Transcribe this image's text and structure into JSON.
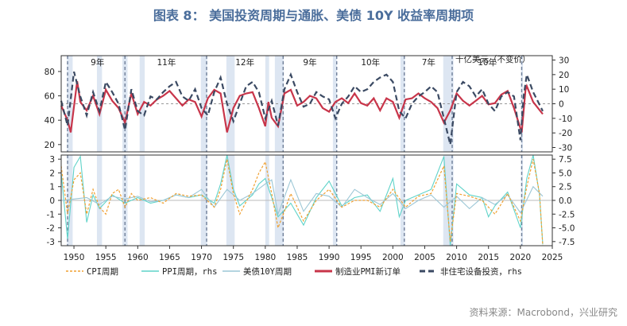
{
  "title": "图表 8： 美国投资周期与通胀、美债 10Y 收益率周期项",
  "source": "资料来源：Macrobond，兴业研究",
  "colors": {
    "cpi": "#f0a030",
    "ppi": "#5fd3c9",
    "bond": "#9cc7d6",
    "pmi": "#c8354a",
    "capex": "#3b4a63",
    "band": "#dde6f2",
    "vline": "#6f7f99"
  },
  "chart_data": [
    {
      "type": "line",
      "panel": "top",
      "xlim": [
        1948,
        2025
      ],
      "ylim": [
        14,
        93
      ],
      "y2lim": [
        -33,
        33
      ],
      "yticks": [
        20,
        40,
        60,
        80
      ],
      "y2ticks": [
        30,
        20,
        10,
        0,
        -10,
        -20,
        -30
      ],
      "cycle_lines": [
        1949,
        1958,
        1970.8,
        1982.8,
        1991.2,
        2001.8,
        2009.3,
        2020.2
      ],
      "cycle_labels": [
        {
          "x": 1953.7,
          "text": "9年"
        },
        {
          "x": 1964.5,
          "text": "11年"
        },
        {
          "x": 1976.8,
          "text": "12年"
        },
        {
          "x": 1987.0,
          "text": "9年"
        },
        {
          "x": 1996.5,
          "text": "10年"
        },
        {
          "x": 2005.6,
          "text": "7年"
        },
        {
          "x": 2014.8,
          "text": "10年"
        }
      ],
      "annotation": "十亿美元（不变价）",
      "recession_bands": [
        [
          1948.9,
          1949.8
        ],
        [
          1953.6,
          1954.4
        ],
        [
          1957.6,
          1958.4
        ],
        [
          1960.3,
          1961.1
        ],
        [
          1969.9,
          1970.9
        ],
        [
          1973.9,
          1975.2
        ],
        [
          1980.0,
          1980.6
        ],
        [
          1981.5,
          1982.9
        ],
        [
          1990.6,
          1991.2
        ],
        [
          2001.2,
          2001.9
        ],
        [
          2007.9,
          2009.5
        ],
        [
          2020.1,
          2020.4
        ]
      ],
      "series": [
        {
          "name": "制造业PMI新订单",
          "axis": "left",
          "x": [
            1948,
            1949,
            1949.5,
            1950.5,
            1951,
            1952,
            1953,
            1954,
            1955,
            1956,
            1957,
            1958,
            1959,
            1960,
            1961,
            1962,
            1963,
            1964,
            1965,
            1966,
            1967,
            1968,
            1969,
            1970,
            1971,
            1972,
            1973,
            1974,
            1975,
            1976,
            1977,
            1978,
            1979,
            1980,
            1980.5,
            1981,
            1982,
            1983,
            1984,
            1985,
            1986,
            1987,
            1988,
            1989,
            1990,
            1991,
            1992,
            1993,
            1994,
            1995,
            1996,
            1997,
            1998,
            1999,
            2000,
            2001,
            2002,
            2003,
            2004,
            2005,
            2006,
            2007,
            2008,
            2009,
            2010,
            2011,
            2012,
            2013,
            2014,
            2015,
            2016,
            2017,
            2018,
            2019,
            2020.2,
            2020.8,
            2021,
            2022,
            2023.5
          ],
          "values": [
            52,
            40,
            30,
            72,
            55,
            48,
            60,
            45,
            65,
            56,
            50,
            38,
            62,
            45,
            55,
            52,
            57,
            60,
            64,
            58,
            52,
            57,
            55,
            43,
            58,
            65,
            62,
            30,
            50,
            60,
            62,
            63,
            50,
            35,
            55,
            42,
            35,
            62,
            65,
            52,
            55,
            60,
            58,
            50,
            47,
            55,
            58,
            54,
            62,
            54,
            52,
            58,
            48,
            58,
            55,
            42,
            57,
            58,
            62,
            58,
            55,
            50,
            38,
            48,
            62,
            56,
            52,
            56,
            60,
            53,
            54,
            61,
            64,
            50,
            30,
            65,
            68,
            55,
            45
          ]
        },
        {
          "name": "非住宅设备投资，rhs",
          "axis": "right",
          "x": [
            1948,
            1949,
            1950,
            1951,
            1952,
            1953,
            1954,
            1955,
            1956,
            1957,
            1958,
            1959,
            1960,
            1961,
            1962,
            1963,
            1964,
            1965,
            1966,
            1967,
            1968,
            1969,
            1970,
            1971,
            1972,
            1973,
            1974,
            1975,
            1976,
            1977,
            1978,
            1979,
            1980,
            1981,
            1982,
            1983,
            1984,
            1985,
            1986,
            1987,
            1988,
            1989,
            1990,
            1991,
            1992,
            1993,
            1994,
            1995,
            1996,
            1997,
            1998,
            1999,
            2000,
            2001,
            2002,
            2003,
            2004,
            2005,
            2006,
            2007,
            2008,
            2009,
            2010,
            2011,
            2012,
            2013,
            2014,
            2015,
            2016,
            2017,
            2018,
            2019,
            2020,
            2020.5,
            2021,
            2022,
            2023.5
          ],
          "values": [
            2,
            -15,
            22,
            5,
            -8,
            8,
            -5,
            15,
            8,
            0,
            -18,
            10,
            -5,
            -8,
            5,
            3,
            8,
            12,
            15,
            5,
            2,
            10,
            -3,
            -8,
            8,
            18,
            0,
            -12,
            0,
            12,
            15,
            8,
            -10,
            2,
            -15,
            10,
            20,
            8,
            -2,
            0,
            8,
            5,
            3,
            -10,
            0,
            5,
            12,
            8,
            10,
            15,
            18,
            20,
            15,
            -5,
            -10,
            0,
            5,
            8,
            12,
            8,
            -10,
            -28,
            8,
            15,
            12,
            5,
            10,
            0,
            -5,
            5,
            8,
            5,
            -25,
            5,
            20,
            8,
            -5
          ]
        }
      ]
    },
    {
      "type": "line",
      "panel": "bottom",
      "xlim": [
        1948,
        2025
      ],
      "ylim": [
        -3.3,
        3.3
      ],
      "y2lim": [
        -8.25,
        8.25
      ],
      "yticks": [
        3,
        2,
        1,
        0,
        -1,
        -2,
        -3
      ],
      "y2ticks": [
        "7.5",
        "5.0",
        "2.5",
        "0.0",
        "-2.5",
        "-5.0",
        "-7.5"
      ],
      "xticks": [
        1950,
        1955,
        1960,
        1965,
        1970,
        1975,
        1980,
        1985,
        1990,
        1995,
        2000,
        2005,
        2010,
        2015,
        2020,
        2025
      ],
      "series": [
        {
          "name": "CPI周期",
          "axis": "left",
          "x": [
            1948,
            1949,
            1950,
            1951,
            1952,
            1953,
            1954,
            1955,
            1956,
            1957,
            1958,
            1959,
            1960,
            1962,
            1964,
            1966,
            1968,
            1970,
            1972,
            1973,
            1974,
            1975,
            1976,
            1978,
            1979,
            1980,
            1981,
            1982,
            1983,
            1984,
            1986,
            1988,
            1990,
            1992,
            1994,
            1996,
            1998,
            2000,
            2002,
            2004,
            2006,
            2008,
            2009,
            2010,
            2012,
            2014,
            2016,
            2018,
            2020,
            2021,
            2022,
            2023,
            2023.5
          ],
          "values": [
            2.5,
            -1.0,
            1.5,
            2.0,
            -1.0,
            0.8,
            -0.5,
            -1.0,
            0.5,
            0.8,
            -0.5,
            0.5,
            0.0,
            0.2,
            -0.2,
            0.5,
            0.3,
            0.4,
            -0.5,
            0.8,
            3.0,
            0.5,
            -1.0,
            0.8,
            2.0,
            2.8,
            0.5,
            -2.0,
            -0.8,
            0.5,
            -1.5,
            0.0,
            0.8,
            -0.5,
            0.0,
            0.0,
            -0.5,
            0.8,
            -0.5,
            0.3,
            0.5,
            2.5,
            -3.0,
            0.5,
            0.3,
            0.0,
            -1.0,
            0.5,
            -1.5,
            1.0,
            3.0,
            0.5,
            -3.5
          ]
        },
        {
          "name": "PPI周期，rhs",
          "axis": "right",
          "x": [
            1948,
            1949,
            1950,
            1951,
            1952,
            1953,
            1954,
            1956,
            1958,
            1960,
            1962,
            1964,
            1966,
            1968,
            1970,
            1972,
            1973,
            1974,
            1975,
            1976,
            1978,
            1979,
            1980,
            1981,
            1982,
            1984,
            1986,
            1988,
            1990,
            1992,
            1994,
            1996,
            1998,
            2000,
            2001,
            2002,
            2004,
            2006,
            2008,
            2009,
            2010,
            2012,
            2014,
            2015,
            2016,
            2018,
            2020,
            2021,
            2022,
            2023,
            2023.5
          ],
          "values": [
            5.0,
            -7.0,
            6.0,
            8.0,
            -4.0,
            1.0,
            -1.5,
            1.0,
            -0.5,
            0.5,
            -0.5,
            0.0,
            1.0,
            0.5,
            1.0,
            -0.5,
            3.0,
            8.5,
            2.0,
            -1.0,
            1.0,
            3.0,
            4.0,
            0.5,
            -3.0,
            -0.5,
            -4.5,
            0.5,
            3.5,
            -1.0,
            0.5,
            1.0,
            -2.0,
            4.0,
            -3.0,
            0.0,
            1.0,
            2.0,
            8.0,
            -9.0,
            3.0,
            1.0,
            0.5,
            -3.0,
            -1.0,
            1.5,
            -5.0,
            4.0,
            8.5,
            1.0,
            -8.0
          ]
        },
        {
          "name": "美债10Y周期",
          "axis": "left",
          "x": [
            1948,
            1950,
            1952,
            1954,
            1956,
            1958,
            1960,
            1962,
            1964,
            1966,
            1968,
            1970,
            1972,
            1974,
            1976,
            1978,
            1980,
            1981,
            1982,
            1984,
            1986,
            1988,
            1990,
            1992,
            1994,
            1996,
            1998,
            2000,
            2002,
            2004,
            2006,
            2008,
            2010,
            2012,
            2014,
            2016,
            2018,
            2020,
            2022,
            2023.5
          ],
          "values": [
            0.0,
            0.1,
            0.2,
            -0.3,
            0.3,
            0.1,
            0.3,
            -0.1,
            0.0,
            0.4,
            0.2,
            0.8,
            -0.5,
            0.8,
            0.0,
            0.5,
            1.2,
            1.5,
            -1.0,
            1.5,
            -0.8,
            0.5,
            0.3,
            -0.5,
            0.8,
            0.2,
            -0.3,
            0.5,
            -0.6,
            0.0,
            0.4,
            -0.5,
            0.3,
            -0.6,
            0.2,
            -0.3,
            0.4,
            -0.9,
            1.0,
            0.3
          ]
        }
      ]
    }
  ]
}
